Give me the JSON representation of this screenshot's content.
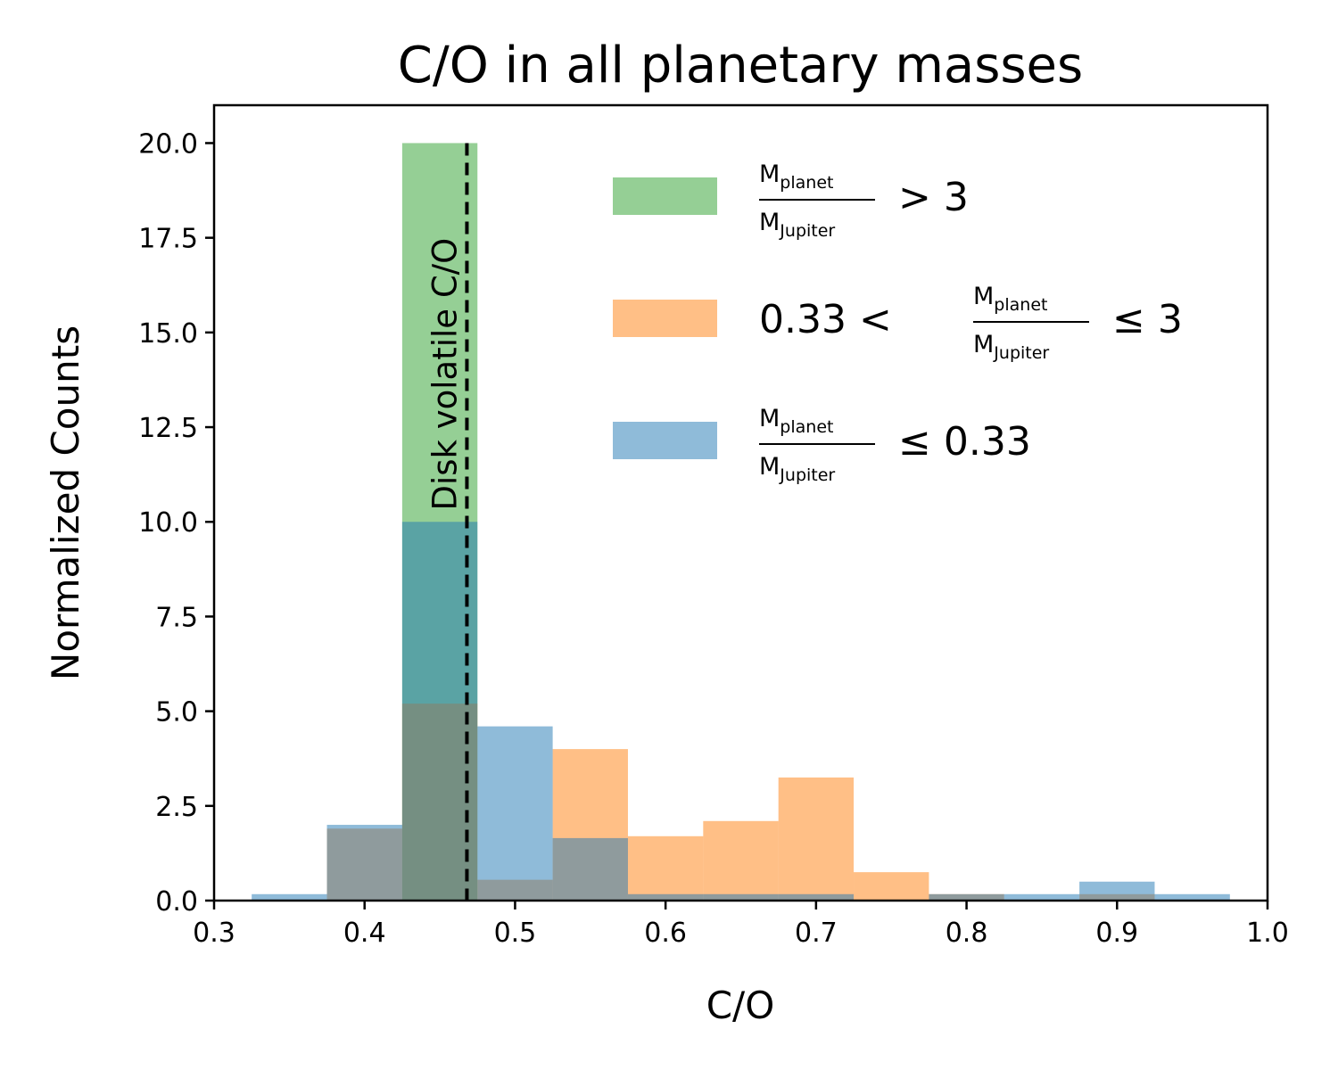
{
  "chart_data": {
    "type": "bar",
    "title": "C/O in all planetary masses",
    "xlabel": "C/O",
    "ylabel": "Normalized Counts",
    "xlim": [
      0.3,
      1.0
    ],
    "ylim": [
      0,
      21
    ],
    "xticks": [
      "0.3",
      "0.4",
      "0.5",
      "0.6",
      "0.7",
      "0.8",
      "0.9",
      "1.0"
    ],
    "yticks": [
      "0.0",
      "2.5",
      "5.0",
      "7.5",
      "10.0",
      "12.5",
      "15.0",
      "17.5",
      "20.0"
    ],
    "bin_width": 0.05,
    "series": [
      {
        "name": "> 3",
        "color": "#2ca02c",
        "bins": [
          {
            "x": 0.425,
            "value": 20.0
          }
        ]
      },
      {
        "name": "0.33 < ≤ 3",
        "color": "#ff7f0e",
        "bins": [
          {
            "x": 0.375,
            "value": 1.9
          },
          {
            "x": 0.425,
            "value": 5.2
          },
          {
            "x": 0.475,
            "value": 0.55
          },
          {
            "x": 0.525,
            "value": 4.0
          },
          {
            "x": 0.575,
            "value": 1.7
          },
          {
            "x": 0.625,
            "value": 2.1
          },
          {
            "x": 0.675,
            "value": 3.25
          },
          {
            "x": 0.725,
            "value": 0.75
          },
          {
            "x": 0.775,
            "value": 0.17
          },
          {
            "x": 0.875,
            "value": 0.17
          }
        ]
      },
      {
        "name": "≤ 0.33",
        "color": "#1f77b4",
        "bins": [
          {
            "x": 0.325,
            "value": 0.17
          },
          {
            "x": 0.375,
            "value": 2.0
          },
          {
            "x": 0.425,
            "value": 10.0
          },
          {
            "x": 0.475,
            "value": 4.6
          },
          {
            "x": 0.525,
            "value": 1.65
          },
          {
            "x": 0.575,
            "value": 0.17
          },
          {
            "x": 0.625,
            "value": 0.17
          },
          {
            "x": 0.675,
            "value": 0.17
          },
          {
            "x": 0.775,
            "value": 0.17
          },
          {
            "x": 0.825,
            "value": 0.17
          },
          {
            "x": 0.875,
            "value": 0.5
          },
          {
            "x": 0.925,
            "value": 0.17
          }
        ]
      }
    ],
    "vline": {
      "x": 0.468,
      "style": "dashed",
      "color": "#000000",
      "label": "Disk volatile C/O"
    },
    "legend": {
      "placement": "top-right",
      "entries": [
        {
          "series": 0,
          "frac_num": "M",
          "frac_num_sub": "planet",
          "frac_den": "M",
          "frac_den_sub": "Jupiter",
          "prefix": "",
          "suffix": "> 3"
        },
        {
          "series": 1,
          "frac_num": "M",
          "frac_num_sub": "planet",
          "frac_den": "M",
          "frac_den_sub": "Jupiter",
          "prefix": "0.33  <",
          "suffix": "≤  3"
        },
        {
          "series": 2,
          "frac_num": "M",
          "frac_num_sub": "planet",
          "frac_den": "M",
          "frac_den_sub": "Jupiter",
          "prefix": "",
          "suffix": "≤  0.33"
        }
      ]
    }
  }
}
